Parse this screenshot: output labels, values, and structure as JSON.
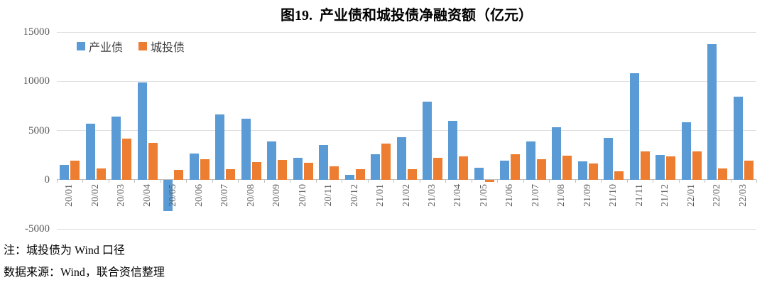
{
  "title": "图19.  产业债和城投债净融资额（亿元）",
  "legend": {
    "items": [
      {
        "label": "产业债",
        "color": "#5B9BD5"
      },
      {
        "label": "城投债",
        "color": "#ED7D31"
      }
    ]
  },
  "notes": {
    "line1": "注：城投债为 Wind 口径",
    "line2": "数据来源：Wind，联合资信整理"
  },
  "chart_data": {
    "type": "bar",
    "title": "图19. 产业债和城投债净融资额（亿元）",
    "xlabel": "",
    "ylabel": "",
    "unit": "亿元",
    "categories": [
      "20/01",
      "20/02",
      "20/03",
      "20/04",
      "20/05",
      "20/06",
      "20/07",
      "20/08",
      "20/09",
      "20/10",
      "20/11",
      "20/12",
      "21/01",
      "21/02",
      "21/03",
      "21/04",
      "21/05",
      "21/06",
      "21/07",
      "21/08",
      "21/09",
      "21/10",
      "21/11",
      "21/12",
      "22/01",
      "22/02",
      "22/03"
    ],
    "series": [
      {
        "name": "产业债",
        "color": "#5B9BD5",
        "values": [
          1500,
          5700,
          6400,
          9900,
          -3200,
          2650,
          6650,
          6200,
          3850,
          2250,
          3500,
          500,
          2550,
          4350,
          7900,
          5950,
          1200,
          1900,
          3850,
          5300,
          1850,
          4250,
          10800,
          2500,
          5850,
          13800,
          8400
        ]
      },
      {
        "name": "城投债",
        "color": "#ED7D31",
        "values": [
          1900,
          1150,
          4150,
          3750,
          1000,
          2100,
          1050,
          1800,
          2000,
          1700,
          1350,
          1050,
          3700,
          1100,
          2250,
          2350,
          -200,
          2550,
          2050,
          2450,
          1650,
          850,
          2900,
          2400,
          2850,
          1150,
          1950
        ]
      }
    ],
    "ylim": [
      -5000,
      15000
    ],
    "yticks": [
      15000,
      10000,
      5000,
      0,
      -5000
    ],
    "ytick_interval": 5000,
    "grid": true,
    "legend_position": "top-left",
    "gridline_color": "#DCDCDC",
    "axis_color": "#BFBFBF",
    "tick_label_color": "#595959"
  }
}
